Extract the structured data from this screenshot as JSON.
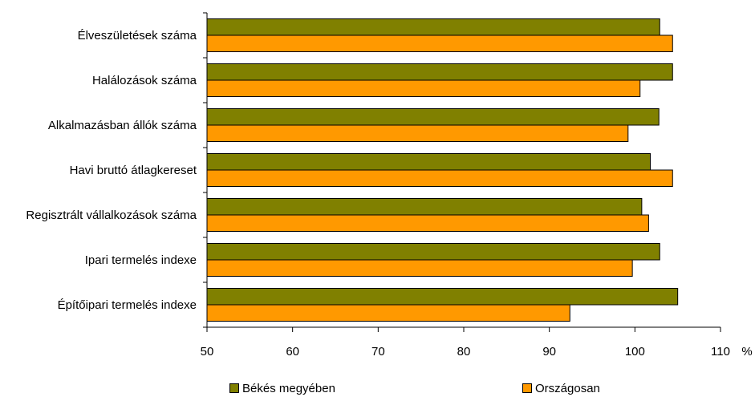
{
  "chart_data": {
    "type": "bar",
    "orientation": "horizontal",
    "categories": [
      "Élveszületések száma",
      "Halálozások száma",
      "Alkalmazásban állók száma",
      "Havi bruttó átlagkereset",
      "Regisztrált vállalkozások száma",
      "Ipari termelés indexe",
      "Építőipari termelés indexe"
    ],
    "series": [
      {
        "name": "Békés megyében",
        "color": "#808000",
        "values": [
          102.9,
          104.4,
          102.8,
          101.8,
          100.8,
          102.9,
          105.0
        ]
      },
      {
        "name": "Országosan",
        "color": "#FF9900",
        "values": [
          104.4,
          100.6,
          99.2,
          104.4,
          101.6,
          99.7,
          92.4
        ]
      }
    ],
    "xlim": [
      50,
      110
    ],
    "xticks": [
      "50",
      "60",
      "70",
      "80",
      "90",
      "100",
      "110"
    ],
    "xunit": "%",
    "grid": false,
    "legend_position": "bottom"
  }
}
